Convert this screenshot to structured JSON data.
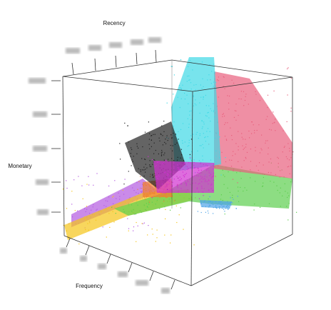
{
  "chart_data": {
    "type": "scatter3d",
    "xlabel": "Frequency",
    "ylabel": "Recency",
    "zlabel": "Monetary",
    "cluster_colors": [
      "#b45ae0",
      "#f5c518",
      "#5cce4e",
      "#f08030",
      "#e8607d",
      "#3fd9e6",
      "#222222",
      "#d02fd0",
      "#4fa4e8"
    ]
  }
}
